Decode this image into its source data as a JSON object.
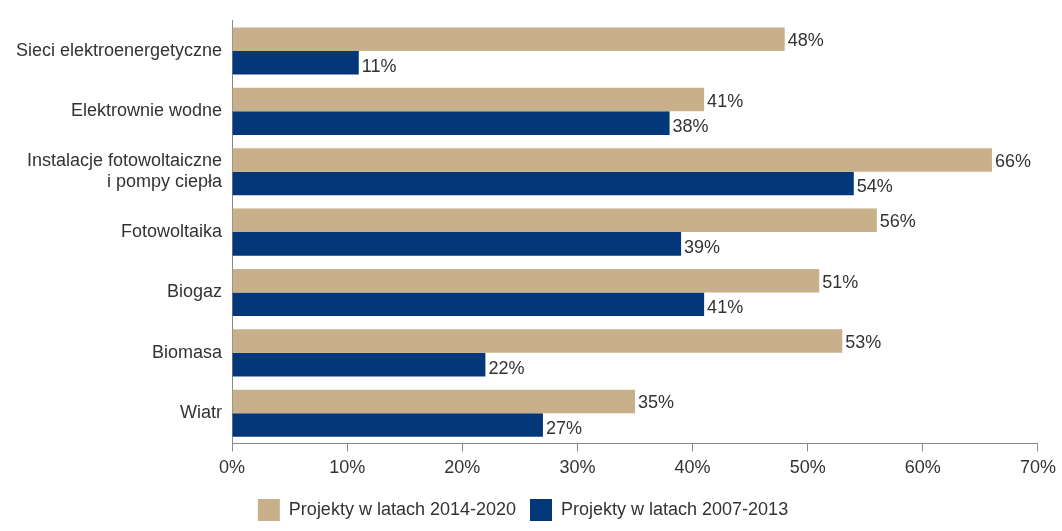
{
  "chart_data": {
    "type": "bar",
    "orientation": "horizontal",
    "categories": [
      "Sieci elektroenergetyczne",
      "Elektrownie wodne",
      "Instalacje fotowoltaiczne\ni pompy ciepła",
      "Fotowoltaika",
      "Biogaz",
      "Biomasa",
      "Wiatr"
    ],
    "series": [
      {
        "name": "Projekty w latach 2014-2020",
        "color": "#c8b08a",
        "values": [
          48,
          41,
          66,
          56,
          51,
          53,
          35
        ],
        "value_labels": [
          "48%",
          "41%",
          "66%",
          "56%",
          "51%",
          "53%",
          "35%"
        ]
      },
      {
        "name": "Projekty w latach 2007-2013",
        "color": "#023879",
        "values": [
          11,
          38,
          54,
          39,
          41,
          22,
          27
        ],
        "value_labels": [
          "11%",
          "38%",
          "54%",
          "39%",
          "41%",
          "22%",
          "27%"
        ]
      }
    ],
    "xlim": [
      0,
      70
    ],
    "xticks": [
      {
        "value": 0,
        "label": "0%"
      },
      {
        "value": 10,
        "label": "10%"
      },
      {
        "value": 20,
        "label": "20%"
      },
      {
        "value": 30,
        "label": "30%"
      },
      {
        "value": 40,
        "label": "40%"
      },
      {
        "value": 50,
        "label": "50%"
      },
      {
        "value": 60,
        "label": "60%"
      },
      {
        "value": 70,
        "label": "70%"
      }
    ],
    "grid": false,
    "legend": "bottom"
  }
}
